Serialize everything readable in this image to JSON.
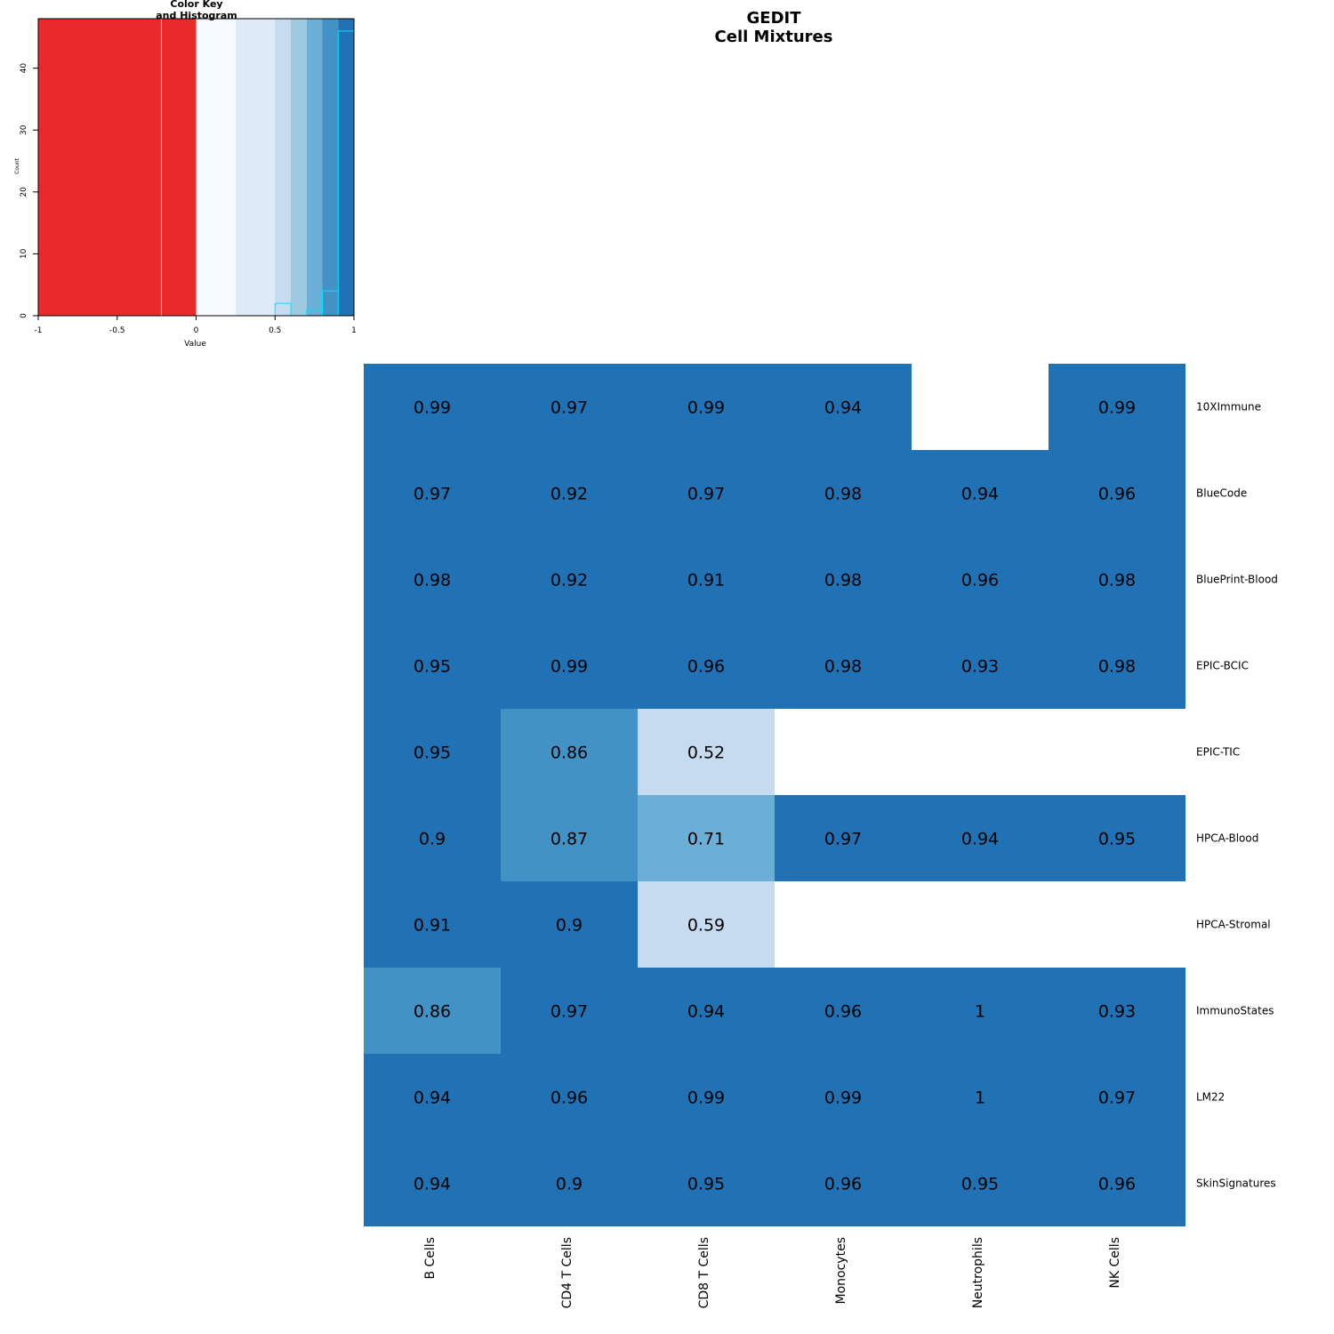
{
  "chart_data": {
    "type": "heatmap",
    "title": "GEDIT",
    "subtitle": "Cell Mixtures",
    "rows": [
      "10XImmune",
      "BlueCode",
      "BluePrint-Blood",
      "EPIC-BCIC",
      "EPIC-TIC",
      "HPCA-Blood",
      "HPCA-Stromal",
      "ImmunoStates",
      "LM22",
      "SkinSignatures"
    ],
    "columns": [
      "B Cells",
      "CD4 T Cells",
      "CD8 T Cells",
      "Monocytes",
      "Neutrophils",
      "NK Cells"
    ],
    "values": [
      [
        0.99,
        0.97,
        0.99,
        0.94,
        null,
        0.99
      ],
      [
        0.97,
        0.92,
        0.97,
        0.98,
        0.94,
        0.96
      ],
      [
        0.98,
        0.92,
        0.91,
        0.98,
        0.96,
        0.98
      ],
      [
        0.95,
        0.99,
        0.96,
        0.98,
        0.93,
        0.98
      ],
      [
        0.95,
        0.86,
        0.52,
        null,
        null,
        null
      ],
      [
        0.9,
        0.87,
        0.71,
        0.97,
        0.94,
        0.95
      ],
      [
        0.91,
        0.9,
        0.59,
        null,
        null,
        null
      ],
      [
        0.86,
        0.97,
        0.94,
        0.96,
        1,
        0.93
      ],
      [
        0.94,
        0.96,
        0.99,
        0.99,
        1,
        0.97
      ],
      [
        0.94,
        0.9,
        0.95,
        0.96,
        0.95,
        0.96
      ]
    ],
    "color_key": {
      "title_line1": "Color Key",
      "title_line2": "and Histogram",
      "xlabel": "Value",
      "ylabel": "Count",
      "xlim": [
        -1,
        1
      ],
      "ylim": [
        0,
        48
      ],
      "x_ticks": [
        "-1",
        "-0.5",
        "0",
        "0.5",
        "1"
      ],
      "y_ticks": [
        "0",
        "10",
        "20",
        "30",
        "40"
      ],
      "color_breaks": [
        {
          "from": -1,
          "to": 0,
          "color": "#e9292a"
        },
        {
          "from": 0,
          "to": 0.25,
          "color": "#f7fbff"
        },
        {
          "from": 0.25,
          "to": 0.5,
          "color": "#deebf7"
        },
        {
          "from": 0.5,
          "to": 0.6,
          "color": "#c6dbef"
        },
        {
          "from": 0.6,
          "to": 0.7,
          "color": "#9ecae1"
        },
        {
          "from": 0.7,
          "to": 0.8,
          "color": "#6baed6"
        },
        {
          "from": 0.8,
          "to": 0.9,
          "color": "#4292c6"
        },
        {
          "from": 0.9,
          "to": 1,
          "color": "#2171b5"
        }
      ],
      "histogram": [
        {
          "from": 0.5,
          "to": 0.6,
          "count": 2
        },
        {
          "from": 0.6,
          "to": 0.7,
          "count": 0
        },
        {
          "from": 0.7,
          "to": 0.8,
          "count": 1
        },
        {
          "from": 0.8,
          "to": 0.9,
          "count": 4
        },
        {
          "from": 0.9,
          "to": 1,
          "count": 46
        }
      ],
      "mean_line": -0.22,
      "histogram_color": "#00e5ff"
    }
  }
}
